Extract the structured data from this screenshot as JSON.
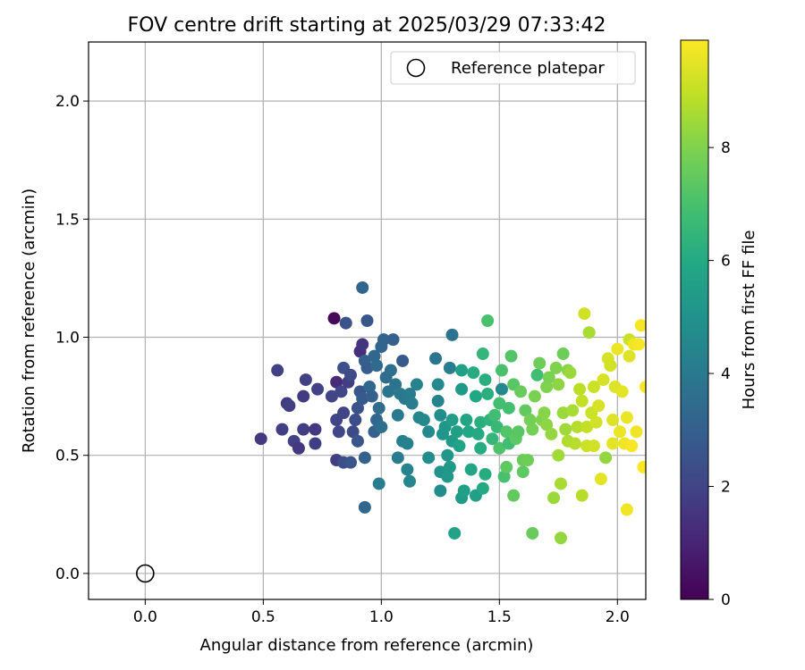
{
  "chart_data": {
    "type": "scatter",
    "title": "FOV centre drift starting at 2025/03/29 07:33:42",
    "xlabel": "Angular distance from reference (arcmin)",
    "ylabel": "Rotation from reference (arcmin)",
    "xlim": [
      -0.24,
      2.12
    ],
    "ylim": [
      -0.11,
      2.25
    ],
    "xticks": [
      0.0,
      0.5,
      1.0,
      1.5,
      2.0
    ],
    "xtick_labels": [
      "0.0",
      "0.5",
      "1.0",
      "1.5",
      "2.0"
    ],
    "yticks": [
      0.0,
      0.5,
      1.0,
      1.5,
      2.0
    ],
    "ytick_labels": [
      "0.0",
      "0.5",
      "1.0",
      "1.5",
      "2.0"
    ],
    "grid": true,
    "legend": {
      "position": "top-right",
      "entries": [
        "Reference platepar"
      ]
    },
    "colorbar": {
      "label": "Hours from first FF file",
      "range": [
        0,
        9.9
      ],
      "ticks": [
        0,
        2,
        4,
        6,
        8
      ],
      "tick_labels": [
        "0",
        "2",
        "4",
        "6",
        "8"
      ],
      "colormap": "viridis"
    },
    "reference_point": {
      "x": 0.0,
      "y": 0.0
    },
    "points": [
      [
        0.49,
        0.57,
        1.6
      ],
      [
        0.56,
        0.86,
        1.9
      ],
      [
        0.58,
        0.61,
        1.8
      ],
      [
        0.6,
        0.72,
        1.7
      ],
      [
        0.61,
        0.71,
        1.8
      ],
      [
        0.63,
        0.56,
        1.9
      ],
      [
        0.65,
        0.53,
        1.6
      ],
      [
        0.67,
        0.61,
        1.8
      ],
      [
        0.67,
        0.75,
        1.7
      ],
      [
        0.68,
        0.82,
        1.9
      ],
      [
        0.72,
        0.61,
        1.6
      ],
      [
        0.72,
        0.55,
        1.8
      ],
      [
        0.73,
        0.78,
        1.9
      ],
      [
        0.8,
        1.08,
        0.2
      ],
      [
        0.81,
        0.81,
        1.2
      ],
      [
        0.81,
        0.48,
        1.8
      ],
      [
        0.79,
        0.75,
        2.0
      ],
      [
        0.81,
        0.65,
        2.0
      ],
      [
        0.82,
        0.6,
        2.1
      ],
      [
        0.83,
        0.77,
        2.1
      ],
      [
        0.84,
        0.47,
        2.4
      ],
      [
        0.84,
        0.87,
        2.4
      ],
      [
        0.84,
        0.68,
        2.0
      ],
      [
        0.85,
        1.06,
        2.5
      ],
      [
        0.86,
        0.81,
        1.8
      ],
      [
        0.87,
        0.84,
        2.2
      ],
      [
        0.87,
        0.47,
        2.6
      ],
      [
        0.88,
        0.6,
        2.2
      ],
      [
        0.89,
        0.65,
        2.3
      ],
      [
        0.9,
        0.7,
        2.5
      ],
      [
        0.91,
        0.94,
        1.3
      ],
      [
        0.92,
        0.97,
        1.5
      ],
      [
        0.9,
        0.56,
        2.6
      ],
      [
        0.91,
        0.77,
        2.6
      ],
      [
        0.92,
        0.74,
        2.8
      ],
      [
        0.92,
        1.21,
        3.2
      ],
      [
        0.93,
        0.9,
        3.0
      ],
      [
        0.93,
        0.49,
        3.1
      ],
      [
        0.93,
        0.28,
        3.3
      ],
      [
        0.94,
        1.07,
        2.7
      ],
      [
        0.94,
        0.87,
        2.9
      ],
      [
        0.95,
        0.79,
        3.3
      ],
      [
        0.96,
        0.75,
        3.0
      ],
      [
        0.97,
        0.6,
        3.1
      ],
      [
        0.97,
        0.92,
        3.3
      ],
      [
        0.98,
        0.88,
        3.4
      ],
      [
        0.98,
        0.65,
        3.3
      ],
      [
        0.99,
        0.7,
        3.5
      ],
      [
        1.0,
        0.96,
        3.2
      ],
      [
        1.0,
        0.62,
        3.6
      ],
      [
        0.99,
        0.38,
        4.2
      ],
      [
        1.01,
        0.99,
        3.2
      ],
      [
        1.02,
        0.83,
        3.5
      ],
      [
        1.03,
        0.77,
        3.8
      ],
      [
        1.04,
        0.86,
        3.6
      ],
      [
        1.05,
        0.99,
        3.0
      ],
      [
        1.06,
        0.8,
        3.8
      ],
      [
        1.07,
        0.67,
        4.0
      ],
      [
        1.07,
        0.49,
        4.1
      ],
      [
        1.08,
        0.76,
        4.0
      ],
      [
        1.09,
        0.9,
        2.8
      ],
      [
        1.09,
        0.56,
        4.2
      ],
      [
        1.1,
        0.74,
        4.0
      ],
      [
        1.11,
        0.55,
        4.3
      ],
      [
        1.11,
        0.44,
        4.4
      ],
      [
        1.12,
        0.39,
        4.5
      ],
      [
        1.12,
        0.76,
        4.1
      ],
      [
        1.13,
        0.72,
        4.2
      ],
      [
        1.15,
        0.8,
        4.4
      ],
      [
        1.16,
        0.66,
        4.5
      ],
      [
        1.18,
        0.65,
        4.6
      ],
      [
        1.2,
        0.6,
        4.7
      ],
      [
        1.2,
        0.49,
        4.8
      ],
      [
        1.23,
        0.91,
        3.9
      ],
      [
        1.24,
        0.8,
        4.6
      ],
      [
        1.24,
        0.73,
        4.4
      ],
      [
        1.25,
        0.67,
        4.8
      ],
      [
        1.25,
        0.43,
        5.0
      ],
      [
        1.25,
        0.35,
        4.8
      ],
      [
        1.26,
        0.59,
        5.1
      ],
      [
        1.27,
        0.62,
        5.2
      ],
      [
        1.28,
        0.5,
        5.2
      ],
      [
        1.28,
        0.41,
        5.3
      ],
      [
        1.29,
        0.87,
        4.2
      ],
      [
        1.29,
        0.45,
        5.3
      ],
      [
        1.3,
        1.01,
        3.8
      ],
      [
        1.3,
        0.65,
        5.5
      ],
      [
        1.3,
        0.56,
        5.4
      ],
      [
        1.31,
        0.17,
        5.7
      ],
      [
        1.32,
        0.6,
        5.6
      ],
      [
        1.33,
        0.54,
        5.7
      ],
      [
        1.34,
        0.86,
        5.6
      ],
      [
        1.34,
        0.78,
        5.3
      ],
      [
        1.34,
        0.32,
        5.4
      ],
      [
        1.35,
        0.35,
        5.6
      ],
      [
        1.36,
        0.65,
        5.8
      ],
      [
        1.37,
        0.6,
        5.9
      ],
      [
        1.38,
        0.44,
        5.8
      ],
      [
        1.39,
        0.85,
        6.1
      ],
      [
        1.4,
        0.75,
        5.9
      ],
      [
        1.4,
        0.33,
        5.6
      ],
      [
        1.41,
        0.59,
        6.0
      ],
      [
        1.42,
        0.53,
        6.1
      ],
      [
        1.42,
        0.64,
        6.2
      ],
      [
        1.43,
        0.93,
        6.5
      ],
      [
        1.43,
        0.36,
        6.0
      ],
      [
        1.44,
        0.82,
        6.2
      ],
      [
        1.44,
        0.42,
        6.1
      ],
      [
        1.45,
        0.76,
        6.2
      ],
      [
        1.45,
        1.07,
        7.0
      ],
      [
        1.46,
        0.65,
        6.4
      ],
      [
        1.47,
        0.57,
        6.5
      ],
      [
        1.48,
        0.67,
        6.8
      ],
      [
        1.49,
        0.62,
        6.6
      ],
      [
        1.5,
        0.53,
        7.1
      ],
      [
        1.5,
        0.72,
        6.9
      ],
      [
        1.51,
        0.86,
        7.0
      ],
      [
        1.51,
        0.78,
        4.6
      ],
      [
        1.52,
        0.41,
        7.0
      ],
      [
        1.53,
        0.6,
        7.2
      ],
      [
        1.53,
        0.45,
        7.4
      ],
      [
        1.54,
        0.55,
        6.8
      ],
      [
        1.54,
        0.7,
        6.9
      ],
      [
        1.55,
        0.92,
        7.2
      ],
      [
        1.56,
        0.8,
        7.3
      ],
      [
        1.56,
        0.33,
        7.5
      ],
      [
        1.57,
        0.57,
        7.4
      ],
      [
        1.58,
        0.6,
        7.3
      ],
      [
        1.59,
        0.77,
        7.6
      ],
      [
        1.6,
        0.43,
        7.4
      ],
      [
        1.6,
        0.48,
        7.6
      ],
      [
        1.61,
        0.69,
        7.5
      ],
      [
        1.62,
        0.48,
        7.7
      ],
      [
        1.63,
        0.65,
        7.8
      ],
      [
        1.64,
        0.17,
        7.6
      ],
      [
        1.64,
        0.61,
        7.8
      ],
      [
        1.65,
        0.75,
        7.9
      ],
      [
        1.66,
        0.84,
        6.8
      ],
      [
        1.67,
        0.89,
        7.7
      ],
      [
        1.68,
        0.65,
        8.0
      ],
      [
        1.69,
        0.68,
        8.1
      ],
      [
        1.7,
        0.63,
        8.2
      ],
      [
        1.7,
        0.79,
        8.0
      ],
      [
        1.71,
        0.83,
        7.9
      ],
      [
        1.72,
        0.59,
        8.3
      ],
      [
        1.73,
        0.32,
        8.4
      ],
      [
        1.74,
        0.87,
        8.0
      ],
      [
        1.75,
        0.5,
        8.5
      ],
      [
        1.75,
        0.8,
        8.2
      ],
      [
        1.76,
        0.15,
        8.3
      ],
      [
        1.76,
        0.38,
        8.6
      ],
      [
        1.77,
        0.68,
        8.4
      ],
      [
        1.77,
        0.93,
        7.7
      ],
      [
        1.78,
        0.61,
        8.5
      ],
      [
        1.79,
        0.56,
        8.7
      ],
      [
        1.79,
        0.86,
        8.1
      ],
      [
        1.8,
        0.85,
        8.4
      ],
      [
        1.81,
        0.69,
        8.6
      ],
      [
        1.82,
        0.55,
        8.8
      ],
      [
        1.83,
        0.62,
        8.8
      ],
      [
        1.84,
        0.78,
        8.9
      ],
      [
        1.85,
        0.33,
        8.8
      ],
      [
        1.85,
        0.73,
        9.0
      ],
      [
        1.86,
        1.1,
        9.2
      ],
      [
        1.87,
        0.62,
        9.0
      ],
      [
        1.87,
        0.54,
        9.1
      ],
      [
        1.88,
        1.02,
        8.6
      ],
      [
        1.89,
        0.68,
        9.1
      ],
      [
        1.9,
        0.79,
        9.1
      ],
      [
        1.9,
        0.54,
        9.2
      ],
      [
        1.91,
        0.64,
        9.2
      ],
      [
        1.92,
        0.71,
        9.3
      ],
      [
        1.93,
        0.4,
        9.5
      ],
      [
        1.94,
        0.82,
        9.3
      ],
      [
        1.95,
        0.49,
        8.3
      ],
      [
        1.96,
        0.91,
        9.3
      ],
      [
        1.97,
        0.88,
        9.2
      ],
      [
        1.98,
        0.65,
        9.4
      ],
      [
        1.98,
        0.55,
        9.5
      ],
      [
        1.99,
        0.79,
        9.4
      ],
      [
        2.0,
        0.95,
        9.6
      ],
      [
        2.01,
        0.6,
        9.6
      ],
      [
        2.02,
        0.77,
        9.5
      ],
      [
        2.03,
        0.55,
        9.7
      ],
      [
        2.04,
        0.27,
        9.7
      ],
      [
        2.04,
        0.66,
        9.6
      ],
      [
        2.05,
        0.92,
        9.4
      ],
      [
        2.05,
        0.99,
        9.1
      ],
      [
        2.06,
        0.54,
        9.8
      ],
      [
        2.07,
        0.97,
        9.7
      ],
      [
        2.08,
        0.6,
        9.7
      ],
      [
        2.09,
        0.97,
        9.8
      ],
      [
        2.1,
        1.05,
        9.8
      ],
      [
        2.11,
        0.45,
        9.9
      ],
      [
        2.12,
        0.79,
        9.9
      ]
    ]
  }
}
